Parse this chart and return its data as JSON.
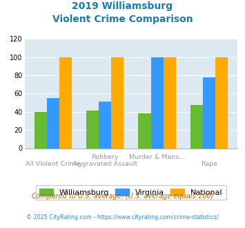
{
  "title_line1": "2019 Williamsburg",
  "title_line2": "Violent Crime Comparison",
  "williamsburg": [
    40,
    41,
    38,
    47
  ],
  "virginia": [
    55,
    51,
    100,
    78
  ],
  "national": [
    100,
    100,
    100,
    100
  ],
  "color_williamsburg": "#66bb33",
  "color_virginia": "#3399ff",
  "color_national": "#ffaa00",
  "ylim": [
    0,
    120
  ],
  "yticks": [
    0,
    20,
    40,
    60,
    80,
    100,
    120
  ],
  "bg_color": "#dce9f0",
  "title_color": "#1a7ab5",
  "x_top_labels": [
    "",
    "Robbery",
    "Murder & Mans...",
    ""
  ],
  "x_bottom_labels": [
    "All Violent Crime",
    "Aggravated Assault",
    "",
    "Rape"
  ],
  "subtitle_text": "Compared to U.S. average. (U.S. average equals 100)",
  "footer_text": "© 2025 CityRating.com - https://www.cityrating.com/crime-statistics/",
  "legend_labels": [
    "Williamsburg",
    "Virginia",
    "National"
  ],
  "subtitle_color": "#cc6600",
  "footer_color": "#4488cc",
  "footer_color2": "#888888"
}
